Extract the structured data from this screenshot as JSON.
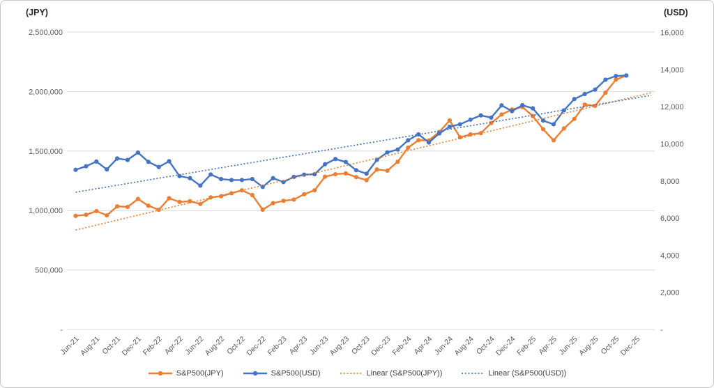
{
  "chart_data": {
    "type": "line",
    "title": "",
    "gridlines": "horizontal",
    "legend_position": "bottom",
    "categories": [
      "Jun-21",
      "Jul-21",
      "Aug-21",
      "Sep-21",
      "Oct-21",
      "Nov-21",
      "Dec-21",
      "Jan-22",
      "Feb-22",
      "Mar-22",
      "Apr-22",
      "May-22",
      "Jun-22",
      "Jul-22",
      "Aug-22",
      "Sep-22",
      "Oct-22",
      "Nov-22",
      "Dec-22",
      "Jan-23",
      "Feb-23",
      "Mar-23",
      "Apr-23",
      "May-23",
      "Jun-23",
      "Jul-23",
      "Aug-23",
      "Sep-23",
      "Oct-23",
      "Nov-23",
      "Dec-23",
      "Jan-24",
      "Feb-24",
      "Mar-24",
      "Apr-24",
      "May-24",
      "Jun-24",
      "Jul-24",
      "Aug-24",
      "Sep-24",
      "Oct-24",
      "Nov-24",
      "Dec-24",
      "Jan-25",
      "Feb-25",
      "Mar-25",
      "Apr-25",
      "May-25",
      "Jun-25",
      "Jul-25",
      "Aug-25",
      "Sep-25",
      "Oct-25",
      "Nov-25"
    ],
    "x_tick_labels": [
      "Jun-21",
      "Aug-21",
      "Oct-21",
      "Dec-21",
      "Feb-22",
      "Apr-22",
      "Jun-22",
      "Aug-22",
      "Oct-22",
      "Dec-22",
      "Feb-23",
      "Apr-23",
      "Jun-23",
      "Aug-23",
      "Oct-23",
      "Dec-23",
      "Feb-24",
      "Apr-24",
      "Jun-24",
      "Aug-24",
      "Oct-24",
      "Dec-24",
      "Feb-25",
      "Apr-25",
      "Jun-25",
      "Aug-25",
      "Oct-25",
      "Dec-25"
    ],
    "left_axis": {
      "title": "(JPY)",
      "min": 0,
      "max": 2500000,
      "tick_interval": 500000,
      "tick_labels": [
        "2,500,000",
        "2,000,000",
        "1,500,000",
        "1,000,000",
        "500,000",
        "-"
      ]
    },
    "right_axis": {
      "title": "(USD)",
      "min": 0,
      "max": 16000,
      "tick_interval": 2000,
      "tick_labels": [
        "16,000",
        "14,000",
        "12,000",
        "10,000",
        "8,000",
        "6,000",
        "4,000",
        "2,000",
        "-"
      ]
    },
    "series": [
      {
        "name": "S&P500(JPY)",
        "axis": "left",
        "color": "#ED7D31",
        "marker": "circle",
        "values": [
          955000,
          964000,
          995000,
          959000,
          1035000,
          1030000,
          1097000,
          1040000,
          1006000,
          1103000,
          1072000,
          1078000,
          1055000,
          1110000,
          1120000,
          1145000,
          1170000,
          1130000,
          1007000,
          1062000,
          1081000,
          1092000,
          1137000,
          1170000,
          1284000,
          1305000,
          1312000,
          1281000,
          1255000,
          1345000,
          1335000,
          1410000,
          1529000,
          1591000,
          1589000,
          1660000,
          1757000,
          1615000,
          1640000,
          1650000,
          1735000,
          1807000,
          1849000,
          1870000,
          1794000,
          1683000,
          1590000,
          1690000,
          1770000,
          1890000,
          1880000,
          1990000,
          2100000,
          2134000
        ]
      },
      {
        "name": "S&P500(USD)",
        "axis": "right",
        "color": "#4472C4",
        "marker": "circle",
        "values": [
          8600,
          8790,
          9045,
          8620,
          9210,
          9130,
          9530,
          9030,
          8750,
          9060,
          8260,
          8150,
          7750,
          8350,
          8100,
          8050,
          8050,
          8100,
          7680,
          8150,
          7940,
          8220,
          8340,
          8360,
          8900,
          9180,
          9020,
          8580,
          8390,
          9140,
          9540,
          9690,
          10190,
          10510,
          10070,
          10560,
          10920,
          11050,
          11300,
          11530,
          11410,
          12070,
          11760,
          12080,
          11910,
          11250,
          11050,
          11800,
          12410,
          12680,
          12920,
          13450,
          13650,
          13680
        ]
      }
    ],
    "trendlines": [
      {
        "name": "Linear (S&P500(JPY))",
        "source_series": "S&P500(JPY)",
        "color": "#ED7D31",
        "style": "dotted"
      },
      {
        "name": "Linear (S&P500(USD))",
        "source_series": "S&P500(USD)",
        "color": "#4472C4",
        "style": "dotted"
      }
    ]
  }
}
